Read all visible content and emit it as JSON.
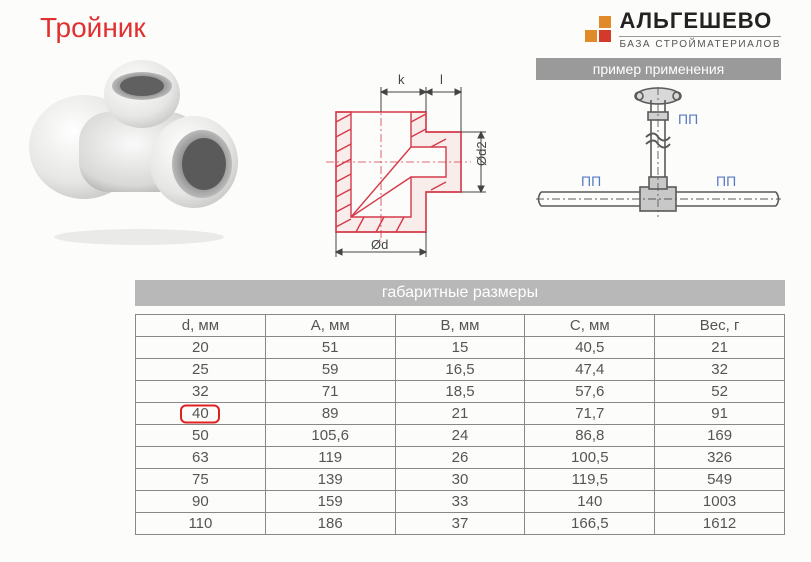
{
  "title": "Тройник",
  "brand": {
    "name": "АЛЬГЕШЕВО",
    "sub": "БАЗА СТРОЙМАТЕРИАЛОВ",
    "logo_colors": [
      "transparent",
      "#e08a2a",
      "#e08a2a",
      "#d43a2a"
    ]
  },
  "example_header": "пример применения",
  "tech_drawing": {
    "stroke": "#d43a4a",
    "dim_stroke": "#444",
    "labels": {
      "k": "k",
      "l": "l",
      "d": "Ød",
      "d2": "Ød2"
    }
  },
  "example_diagram": {
    "pp1": "ПП",
    "pp2": "ПП",
    "pp3": "ПП"
  },
  "table": {
    "title": "габаритные размеры",
    "columns": [
      "d, мм",
      "A, мм",
      "B, мм",
      "C, мм",
      "Вес, г"
    ],
    "rows": [
      [
        "20",
        "51",
        "15",
        "40,5",
        "21"
      ],
      [
        "25",
        "59",
        "16,5",
        "47,4",
        "32"
      ],
      [
        "32",
        "71",
        "18,5",
        "57,6",
        "52"
      ],
      [
        "40",
        "89",
        "21",
        "71,7",
        "91"
      ],
      [
        "50",
        "105,6",
        "24",
        "86,8",
        "169"
      ],
      [
        "63",
        "119",
        "26",
        "100,5",
        "326"
      ],
      [
        "75",
        "139",
        "30",
        "119,5",
        "549"
      ],
      [
        "90",
        "159",
        "33",
        "140",
        "1003"
      ],
      [
        "110",
        "186",
        "37",
        "166,5",
        "1612"
      ]
    ],
    "highlight_row": 3,
    "highlight_col": 0,
    "col_widths_pct": [
      20,
      20,
      20,
      20,
      20
    ],
    "border_color": "#888",
    "text_color": "#555"
  },
  "colors": {
    "title": "#e03030",
    "header_bar": "#b8b8b8",
    "example_bar": "#9a9a9a",
    "bg": "#fcfcfa"
  }
}
